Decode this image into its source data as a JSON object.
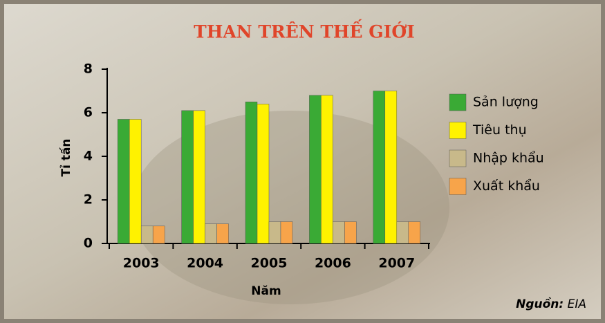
{
  "chart_data": {
    "type": "bar",
    "title": "THAN TRÊN THẾ GIỚI",
    "y_label": "Tỉ tấn",
    "x_label": "Năm",
    "categories": [
      "2003",
      "2004",
      "2005",
      "2006",
      "2007"
    ],
    "series": [
      {
        "name": "Sản lượng",
        "color": "#3aaa35",
        "values": [
          5.7,
          6.1,
          6.5,
          6.8,
          7.0
        ]
      },
      {
        "name": "Tiêu thụ",
        "color": "#fff200",
        "values": [
          5.7,
          6.1,
          6.4,
          6.8,
          7.0
        ]
      },
      {
        "name": "Nhập khẩu",
        "color": "#c8b98a",
        "values": [
          0.8,
          0.9,
          1.0,
          1.0,
          1.0
        ]
      },
      {
        "name": "Xuất khẩu",
        "color": "#f7a44a",
        "values": [
          0.8,
          0.9,
          1.0,
          1.0,
          1.0
        ]
      }
    ],
    "ylim": [
      0,
      8
    ],
    "yticks": [
      0,
      2,
      4,
      6,
      8
    ],
    "source": {
      "label": "Nguồn:",
      "value": "EIA"
    }
  }
}
